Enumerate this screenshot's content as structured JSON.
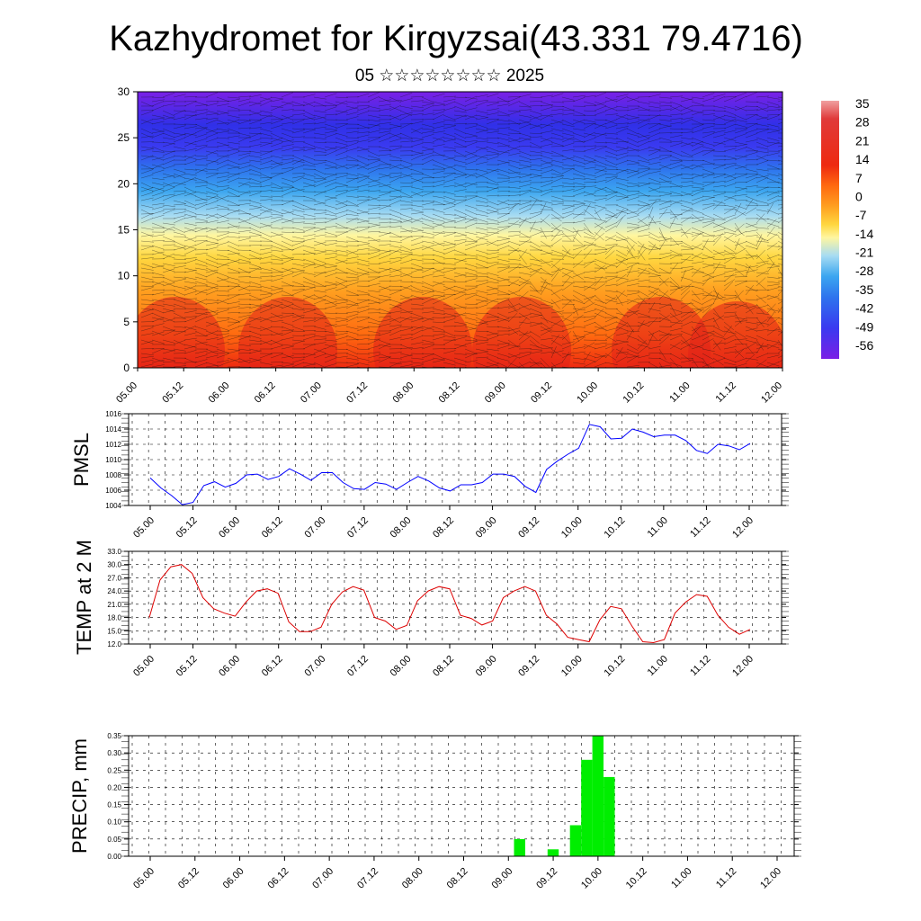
{
  "page": {
    "title": "Kazhydromet for Kirgyzsai(43.331 79.4716)",
    "subtitle": "05 ☆☆☆☆☆☆☆☆ 2025"
  },
  "colors": {
    "pmsl_line": "#0000ff",
    "temp_line": "#dd0000",
    "precip_bar": "#00ee00",
    "cross_section_palette": [
      "#7a20e6",
      "#3a3af0",
      "#2e74ee",
      "#3ca6f0",
      "#a8dcf2",
      "#fff6a0",
      "#ffd740",
      "#ffa020",
      "#ff6a10",
      "#ee2a10",
      "#e03a3a",
      "#f0a0a0"
    ]
  },
  "chart_data": [
    {
      "id": "cross-section",
      "type": "heatmap",
      "title": "",
      "ylabel": "",
      "ylim": [
        0,
        30
      ],
      "yticks": [
        "0",
        "5",
        "10",
        "15",
        "20",
        "25",
        "30"
      ],
      "xticks": [
        "05.00",
        "05.12",
        "06.00",
        "06.12",
        "07.00",
        "07.12",
        "08.00",
        "08.12",
        "09.00",
        "09.12",
        "10.00",
        "10.12",
        "11.00",
        "11.12",
        "12.00"
      ],
      "overlay": "wind barbs",
      "colorbar": {
        "labels": [
          "35",
          "28",
          "21",
          "14",
          "7",
          "0",
          "-7",
          "-14",
          "-21",
          "-28",
          "-35",
          "-42",
          "-49",
          "-56"
        ]
      }
    },
    {
      "id": "pmsl",
      "type": "line",
      "ylabel": "PMSL",
      "ylim": [
        1004,
        1016
      ],
      "yticks": [
        "1004",
        "1006",
        "1008",
        "1010",
        "1012",
        "1014",
        "1016"
      ],
      "xticks": [
        "05.00",
        "05.12",
        "06.00",
        "06.12",
        "07.00",
        "07.12",
        "08.00",
        "08.12",
        "09.00",
        "09.12",
        "10.00",
        "10.12",
        "11.00",
        "11.12",
        "12.00"
      ],
      "x_step_hours": 3,
      "values": [
        1007.6,
        1006.3,
        1005.3,
        1004.1,
        1004.4,
        1006.6,
        1007.1,
        1006.4,
        1006.9,
        1008.0,
        1008.1,
        1007.4,
        1007.8,
        1008.8,
        1008.1,
        1007.3,
        1008.3,
        1008.3,
        1007.0,
        1006.2,
        1006.1,
        1007.0,
        1006.8,
        1006.1,
        1007.0,
        1007.8,
        1007.2,
        1006.3,
        1005.9,
        1006.7,
        1006.7,
        1007.0,
        1008.1,
        1008.1,
        1007.8,
        1006.5,
        1005.7,
        1008.7,
        1009.8,
        1010.7,
        1011.5,
        1014.6,
        1014.3,
        1012.7,
        1012.8,
        1014.0,
        1013.6,
        1013.0,
        1013.2,
        1013.2,
        1012.5,
        1011.2,
        1010.8,
        1012.0,
        1011.8,
        1011.3,
        1012.1
      ],
      "grid": true
    },
    {
      "id": "temp2m",
      "type": "line",
      "ylabel": "TEMP at 2 M",
      "ylim": [
        12,
        33
      ],
      "yticks": [
        "12.0",
        "15.0",
        "18.0",
        "21.0",
        "24.0",
        "27.0",
        "30.0",
        "33.0"
      ],
      "xticks": [
        "05.00",
        "05.12",
        "06.00",
        "06.12",
        "07.00",
        "07.12",
        "08.00",
        "08.12",
        "09.00",
        "09.12",
        "10.00",
        "10.12",
        "11.00",
        "11.12",
        "12.00"
      ],
      "x_step_hours": 3,
      "values": [
        18.0,
        26.5,
        29.5,
        30.0,
        28.0,
        22.5,
        20.0,
        19.0,
        18.3,
        21.5,
        24.0,
        24.5,
        23.5,
        17.0,
        14.8,
        14.8,
        15.8,
        21.0,
        23.8,
        25.0,
        24.2,
        18.0,
        17.2,
        15.3,
        16.2,
        21.8,
        24.0,
        25.0,
        24.5,
        18.5,
        17.8,
        16.3,
        17.2,
        22.5,
        24.0,
        25.0,
        24.0,
        18.5,
        16.5,
        13.5,
        13.0,
        12.5,
        17.5,
        20.5,
        20.0,
        16.0,
        12.5,
        12.3,
        13.0,
        19.0,
        21.5,
        23.2,
        22.8,
        18.5,
        15.8,
        14.2,
        15.3
      ],
      "grid": true
    },
    {
      "id": "precip",
      "type": "bar",
      "ylabel": "PRECIP, mm",
      "ylim": [
        0,
        0.35
      ],
      "yticks": [
        "0.00",
        "0.05",
        "0.10",
        "0.15",
        "0.20",
        "0.25",
        "0.30",
        "0.35"
      ],
      "xticks": [
        "05.00",
        "05.12",
        "06.00",
        "06.12",
        "07.00",
        "07.12",
        "08.00",
        "08.12",
        "09.00",
        "09.12",
        "10.00",
        "10.12",
        "11.00",
        "11.12",
        "12.00"
      ],
      "x_step_hours": 3,
      "values": [
        0,
        0,
        0,
        0,
        0,
        0,
        0,
        0,
        0,
        0,
        0,
        0,
        0,
        0,
        0,
        0,
        0,
        0,
        0,
        0,
        0,
        0,
        0,
        0,
        0,
        0,
        0,
        0,
        0,
        0,
        0,
        0,
        0,
        0.05,
        0,
        0,
        0.02,
        0,
        0.09,
        0.28,
        0.35,
        0.23,
        0,
        0,
        0,
        0,
        0,
        0,
        0,
        0,
        0,
        0,
        0,
        0,
        0,
        0
      ],
      "grid": true
    }
  ]
}
